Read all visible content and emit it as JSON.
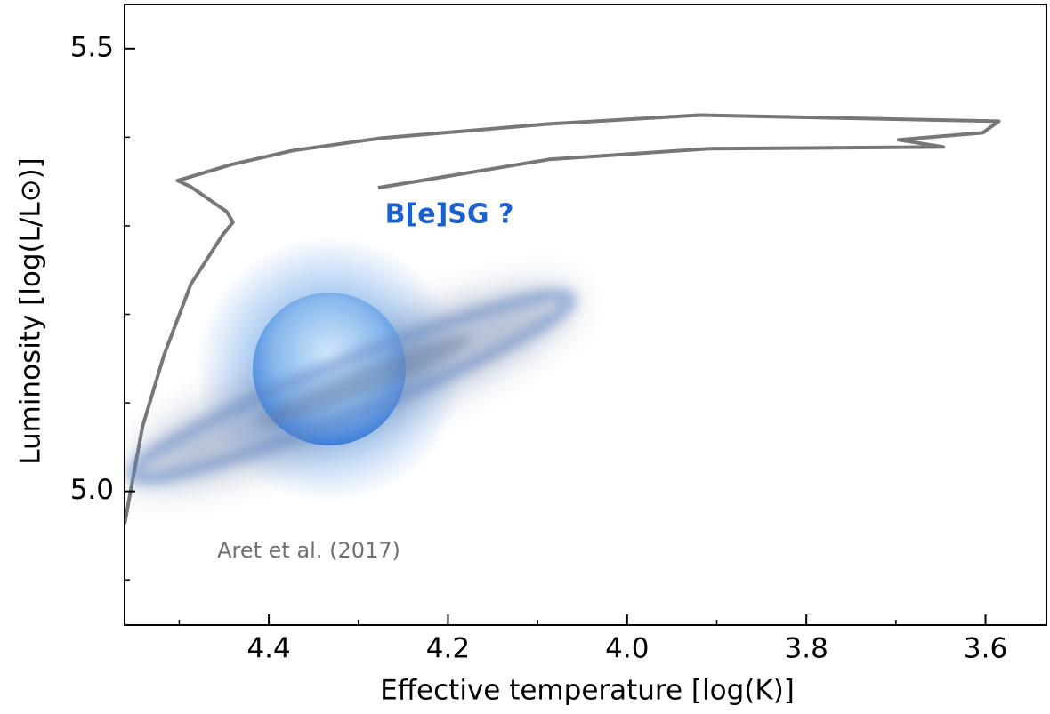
{
  "chart_data": {
    "type": "line",
    "xlabel": "Effective temperature [log(K)]",
    "ylabel": "Luminosity [log(L/L⊙)]",
    "xlim": [
      4.561,
      3.532
    ],
    "ylim": [
      4.849,
      5.55
    ],
    "xticks": [
      4.4,
      4.2,
      {
        "value": 4.0,
        "label": "4.0"
      },
      3.8,
      3.6
    ],
    "yticks": [
      {
        "value": 5.0,
        "label": "5.0"
      },
      5.5
    ],
    "xminorticks": [
      4.5,
      4.3,
      4.1,
      3.9,
      3.7
    ],
    "yminorticks": [
      4.9,
      5.1,
      5.2,
      5.3,
      5.4
    ],
    "series": [
      {
        "color": "#777777",
        "x": [
          4.561,
          4.541,
          4.517,
          4.487,
          4.452,
          4.44,
          4.447,
          4.487,
          4.502,
          4.492,
          4.442,
          4.373,
          4.275,
          4.205,
          4.087,
          3.919,
          3.585,
          3.603,
          3.697,
          3.647,
          3.909,
          4.087,
          4.278
        ],
        "y": [
          4.963,
          5.073,
          5.154,
          5.234,
          5.289,
          5.304,
          5.316,
          5.344,
          5.351,
          5.354,
          5.369,
          5.385,
          5.399,
          5.405,
          5.415,
          5.425,
          5.418,
          5.405,
          5.397,
          5.389,
          5.387,
          5.375,
          5.343
        ]
      }
    ],
    "annotations": [
      {
        "text": "B[e]SG ?",
        "color": "#1a5fd0"
      },
      {
        "text": "Aret et al. (2017)",
        "color": "#707070"
      }
    ]
  }
}
